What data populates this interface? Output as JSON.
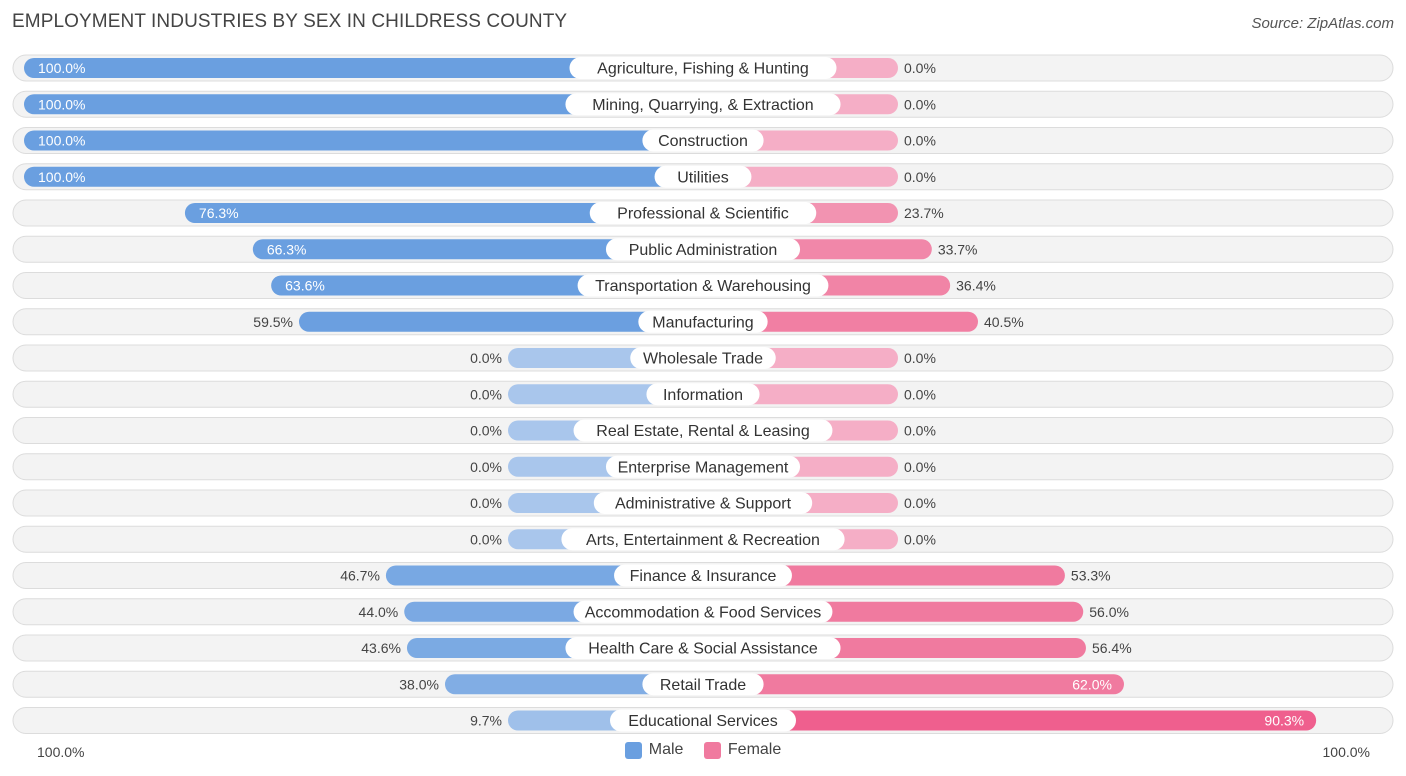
{
  "title": "EMPLOYMENT INDUSTRIES BY SEX IN CHILDRESS COUNTY",
  "source": "Source: ZipAtlas.com",
  "colors": {
    "male": "#6a9fe0",
    "male_light": "#a9c6ec",
    "female": "#f07a9f",
    "female_light": "#f5aec6",
    "female_strong": "#ef5f8e"
  },
  "chart_data": {
    "type": "bar",
    "orientation": "horizontal-diverging",
    "categories": [
      "Agriculture, Fishing & Hunting",
      "Mining, Quarrying, & Extraction",
      "Construction",
      "Utilities",
      "Professional & Scientific",
      "Public Administration",
      "Transportation & Warehousing",
      "Manufacturing",
      "Wholesale Trade",
      "Information",
      "Real Estate, Rental & Leasing",
      "Enterprise Management",
      "Administrative & Support",
      "Arts, Entertainment & Recreation",
      "Finance & Insurance",
      "Accommodation & Food Services",
      "Health Care & Social Assistance",
      "Retail Trade",
      "Educational Services"
    ],
    "series": [
      {
        "name": "Male",
        "values": [
          100.0,
          100.0,
          100.0,
          100.0,
          76.3,
          66.3,
          63.6,
          59.5,
          0.0,
          0.0,
          0.0,
          0.0,
          0.0,
          0.0,
          46.7,
          44.0,
          43.6,
          38.0,
          9.7
        ],
        "labels": [
          "100.0%",
          "100.0%",
          "100.0%",
          "100.0%",
          "76.3%",
          "66.3%",
          "63.6%",
          "59.5%",
          "0.0%",
          "0.0%",
          "0.0%",
          "0.0%",
          "0.0%",
          "0.0%",
          "46.7%",
          "44.0%",
          "43.6%",
          "38.0%",
          "9.7%"
        ]
      },
      {
        "name": "Female",
        "values": [
          0.0,
          0.0,
          0.0,
          0.0,
          23.7,
          33.7,
          36.4,
          40.5,
          0.0,
          0.0,
          0.0,
          0.0,
          0.0,
          0.0,
          53.3,
          56.0,
          56.4,
          62.0,
          90.3
        ],
        "labels": [
          "0.0%",
          "0.0%",
          "0.0%",
          "0.0%",
          "23.7%",
          "33.7%",
          "36.4%",
          "40.5%",
          "0.0%",
          "0.0%",
          "0.0%",
          "0.0%",
          "0.0%",
          "0.0%",
          "53.3%",
          "56.0%",
          "56.4%",
          "62.0%",
          "90.3%"
        ]
      }
    ],
    "xlim": [
      -100,
      100
    ],
    "axis_left_label": "100.0%",
    "axis_right_label": "100.0%",
    "legend": [
      "Male",
      "Female"
    ],
    "legend_position": "bottom-center"
  }
}
